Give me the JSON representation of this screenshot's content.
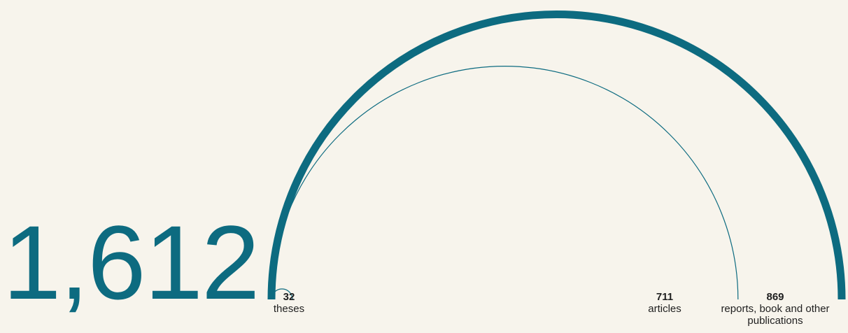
{
  "total": "1,612",
  "colors": {
    "accent": "#0d6b80",
    "background": "#f7f4ec"
  },
  "chart_data": {
    "type": "arc",
    "title": "",
    "total": 1612,
    "categories": [
      "theses",
      "articles",
      "reports, book and other publications"
    ],
    "values": [
      32,
      711,
      869
    ],
    "labels": [
      "32",
      "711",
      "869"
    ]
  }
}
